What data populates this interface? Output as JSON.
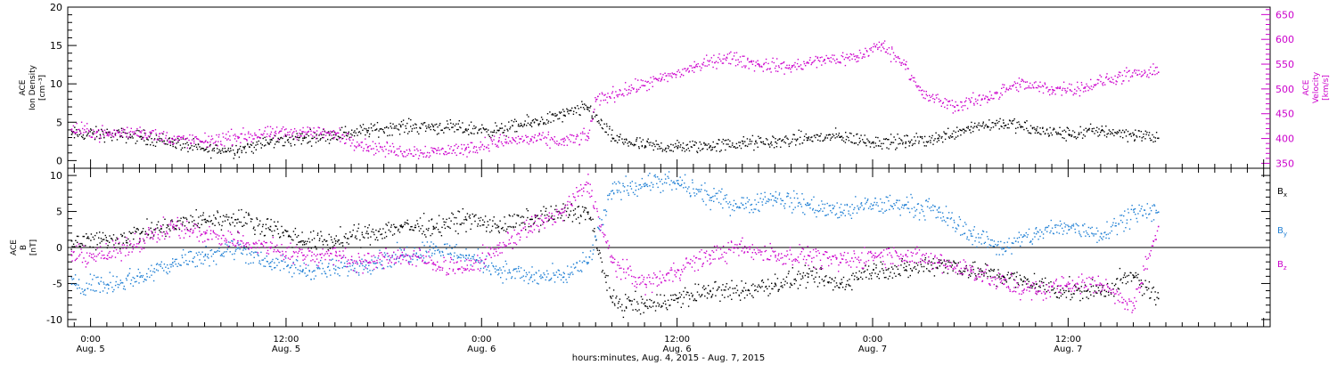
{
  "chart_data": [
    {
      "type": "scatter",
      "panel": "top",
      "xlabel": "hours:minutes, Aug. 4, 2015 - Aug. 7, 2015",
      "x_ticks": [
        {
          "hours": 0,
          "time": "0:00",
          "date": "Aug. 5"
        },
        {
          "hours": 12,
          "time": "12:00",
          "date": "Aug. 5"
        },
        {
          "hours": 24,
          "time": "0:00",
          "date": "Aug. 6"
        },
        {
          "hours": 36,
          "time": "12:00",
          "date": "Aug. 6"
        },
        {
          "hours": 48,
          "time": "0:00",
          "date": "Aug. 7"
        },
        {
          "hours": 60,
          "time": "12:00",
          "date": "Aug. 7"
        }
      ],
      "xlim_hours": [
        -1.4,
        72.4
      ],
      "ylabel_left": [
        "ACE",
        "Ion Density",
        "[cm⁻³]"
      ],
      "ylim_left": [
        -1,
        20
      ],
      "yticks_left": [
        0,
        5,
        10,
        15,
        20
      ],
      "ylabel_right": [
        "ACE",
        "Velocity",
        "[km/s]"
      ],
      "ylim_right": [
        340,
        665
      ],
      "yticks_right": [
        350,
        400,
        450,
        500,
        550,
        600,
        650
      ],
      "series": [
        {
          "axis": "left",
          "color": "#000000",
          "x": [
            -1.2,
            1,
            3,
            5,
            7,
            9,
            11,
            13,
            15,
            17,
            19,
            21,
            23,
            25,
            27,
            29,
            30.5,
            32,
            34,
            36,
            38,
            40,
            42,
            44,
            46,
            48,
            50,
            52,
            54,
            56,
            58,
            60,
            62,
            64,
            65.5
          ],
          "y": [
            3.5,
            3.5,
            3.2,
            2.5,
            1.5,
            1.5,
            2.5,
            3.0,
            3.5,
            4.0,
            4.5,
            4.5,
            4.2,
            4.0,
            5.0,
            6.0,
            7.0,
            3.0,
            2.0,
            1.8,
            2.0,
            2.3,
            2.5,
            3.0,
            3.2,
            2.5,
            2.5,
            3.0,
            4.5,
            5.0,
            4.0,
            3.5,
            4.0,
            3.5,
            3.0
          ]
        },
        {
          "axis": "right",
          "color": "#cc00cc",
          "x": [
            -1.2,
            1,
            3,
            5,
            7,
            9,
            11,
            13,
            15,
            17,
            19,
            21,
            23,
            25,
            27,
            29,
            30.5,
            31,
            33,
            35,
            37,
            39,
            41,
            43,
            45,
            47,
            48.5,
            50,
            51,
            53,
            55,
            57,
            59,
            61,
            63,
            65.5
          ],
          "y": [
            420,
            410,
            415,
            400,
            395,
            405,
            410,
            415,
            410,
            385,
            375,
            375,
            380,
            395,
            400,
            395,
            405,
            480,
            500,
            520,
            545,
            565,
            550,
            545,
            560,
            565,
            590,
            550,
            490,
            465,
            485,
            510,
            500,
            505,
            525,
            535
          ]
        }
      ]
    },
    {
      "type": "scatter",
      "panel": "bottom",
      "ylabel": [
        "ACE",
        "B",
        "[nT]"
      ],
      "ylim": [
        -11,
        11
      ],
      "yticks": [
        -10,
        -5,
        0,
        5,
        10
      ],
      "series": [
        {
          "name": "B",
          "subscript": "x",
          "color": "#000000",
          "x": [
            -1.2,
            1,
            3,
            5,
            7,
            9,
            11,
            13,
            15,
            17,
            19,
            21,
            23,
            25,
            27,
            29,
            30.5,
            32,
            34,
            36,
            38,
            40,
            42,
            44,
            46,
            48,
            50,
            52,
            54,
            56,
            58,
            60,
            62,
            64,
            65.5
          ],
          "y": [
            1,
            1,
            2,
            3,
            4,
            4,
            3,
            1,
            1,
            2,
            3,
            3,
            4,
            3,
            4,
            5,
            5,
            -7.5,
            -8,
            -7,
            -6,
            -6,
            -5,
            -4,
            -5,
            -3,
            -3,
            -2,
            -3,
            -4,
            -5,
            -6,
            -6,
            -4,
            -7
          ]
        },
        {
          "name": "B",
          "subscript": "y",
          "color": "#1f7fd4",
          "x": [
            -1.2,
            1,
            3,
            5,
            7,
            9,
            11,
            13,
            15,
            17,
            19,
            21,
            23,
            25,
            27,
            29,
            30.5,
            32,
            34,
            36,
            38,
            40,
            42,
            44,
            46,
            48,
            50,
            52,
            54,
            56,
            58,
            60,
            62,
            64,
            65.5
          ],
          "y": [
            -5,
            -5,
            -4,
            -2,
            -1,
            0,
            -2,
            -3,
            -3,
            -2,
            -1,
            0,
            -1,
            -3,
            -4,
            -4,
            -2,
            8,
            9,
            9,
            7,
            6,
            7,
            6,
            5,
            6,
            6,
            5,
            2,
            0,
            2,
            3,
            2,
            5,
            5
          ]
        },
        {
          "name": "B",
          "subscript": "z",
          "color": "#cc00cc",
          "x": [
            -1.2,
            1,
            3,
            5,
            7,
            9,
            11,
            13,
            15,
            17,
            19,
            21,
            23,
            25,
            27,
            29,
            30.5,
            32,
            34,
            36,
            38,
            40,
            42,
            44,
            46,
            48,
            50,
            52,
            54,
            56,
            58,
            60,
            62,
            64,
            65.5
          ],
          "y": [
            -1,
            -1,
            1,
            3,
            2,
            1,
            0,
            -1,
            -1,
            -2,
            -1,
            -2,
            -3,
            0,
            3,
            5,
            9,
            -2,
            -5,
            -3,
            -1,
            0,
            -1,
            -1,
            -2,
            -1,
            -1,
            -2,
            -3,
            -5,
            -6,
            -5,
            -5,
            -8,
            3
          ]
        }
      ]
    }
  ]
}
